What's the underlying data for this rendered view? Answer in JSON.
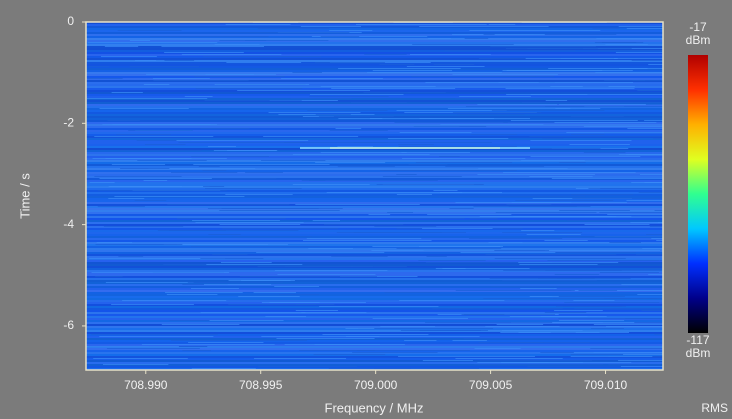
{
  "chart_data": {
    "type": "spectrogram",
    "xlabel": "Frequency / MHz",
    "ylabel": "Time / s",
    "xlim": [
      708.9874,
      709.0125
    ],
    "ylim": [
      -6.87,
      0
    ],
    "xticks": [
      {
        "value": 708.99,
        "label": "708.990"
      },
      {
        "value": 708.995,
        "label": "708.995"
      },
      {
        "value": 709.0,
        "label": "709.000"
      },
      {
        "value": 709.005,
        "label": "709.005"
      },
      {
        "value": 709.01,
        "label": "709.010"
      }
    ],
    "yticks": [
      0,
      -2,
      -4,
      -6
    ],
    "clim": [
      -117,
      -17
    ],
    "colorbar_unit": "dBm",
    "colormap": [
      "#000000",
      "#00008a",
      "#0030ff",
      "#00c8ff",
      "#30ff90",
      "#e0ff20",
      "#ffb000",
      "#ff3000",
      "#b00000"
    ],
    "detector": "RMS"
  }
}
